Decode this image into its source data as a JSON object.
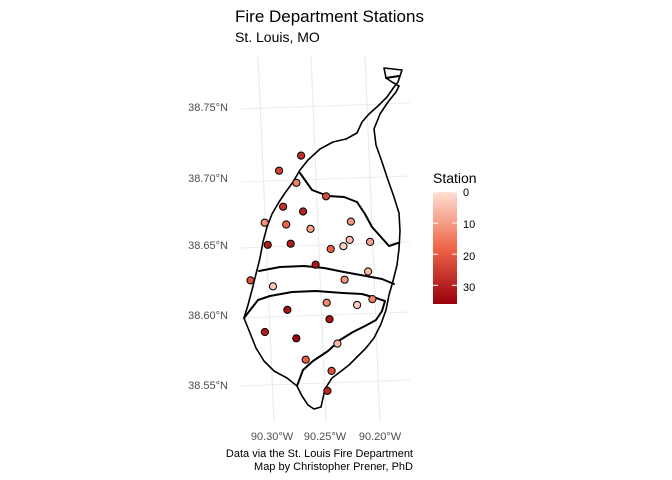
{
  "title": "Fire Department Stations",
  "subtitle": "St. Louis, MO",
  "caption": {
    "line1": "Data via the St. Louis Fire Department",
    "line2": "Map by Christopher Prener, PhD"
  },
  "legend": {
    "title": "Station",
    "labels": [
      "0",
      "10",
      "20",
      "30"
    ],
    "domain": [
      0,
      36
    ],
    "low_color": "#fee0d2",
    "mid_color": "#ef6548",
    "high_color": "#99000d"
  },
  "chart_data": {
    "type": "scatter",
    "x_ticks": [
      "90.30°W",
      "90.25°W",
      "90.20°W"
    ],
    "y_ticks": [
      "38.75°N",
      "38.70°N",
      "38.65°N",
      "38.60°N",
      "38.55°N"
    ],
    "x_tick_values": [
      -90.3,
      -90.25,
      -90.2
    ],
    "y_tick_values": [
      38.75,
      38.7,
      38.65,
      38.6,
      38.55
    ],
    "x_label": "",
    "y_label": "",
    "color_variable": "Station",
    "points": [
      {
        "lon": -90.24,
        "lat": 38.715,
        "station": 28
      },
      {
        "lon": -90.263,
        "lat": 38.706,
        "station": 24
      },
      {
        "lon": -90.25,
        "lat": 38.696,
        "station": 14
      },
      {
        "lon": -90.226,
        "lat": 38.684,
        "station": 23
      },
      {
        "lon": -90.267,
        "lat": 38.68,
        "station": 27
      },
      {
        "lon": -90.25,
        "lat": 38.675,
        "station": 30
      },
      {
        "lon": -90.287,
        "lat": 38.67,
        "station": 12
      },
      {
        "lon": -90.268,
        "lat": 38.667,
        "station": 18
      },
      {
        "lon": -90.209,
        "lat": 38.664,
        "station": 11
      },
      {
        "lon": -90.247,
        "lat": 38.662,
        "station": 9
      },
      {
        "lon": -90.289,
        "lat": 38.654,
        "station": 31
      },
      {
        "lon": -90.268,
        "lat": 38.653,
        "station": 31
      },
      {
        "lon": -90.214,
        "lat": 38.651,
        "station": 5
      },
      {
        "lon": -90.196,
        "lat": 38.648,
        "station": 9
      },
      {
        "lon": -90.221,
        "lat": 38.647,
        "station": 2
      },
      {
        "lon": -90.233,
        "lat": 38.646,
        "station": 19
      },
      {
        "lon": -90.25,
        "lat": 38.636,
        "station": 32
      },
      {
        "lon": -90.312,
        "lat": 38.63,
        "station": 22
      },
      {
        "lon": -90.204,
        "lat": 38.627,
        "station": 6
      },
      {
        "lon": -90.293,
        "lat": 38.624,
        "station": 4
      },
      {
        "lon": -90.227,
        "lat": 38.623,
        "station": 11
      },
      {
        "lon": -90.285,
        "lat": 38.606,
        "station": 33
      },
      {
        "lon": -90.248,
        "lat": 38.608,
        "station": 13
      },
      {
        "lon": -90.206,
        "lat": 38.607,
        "station": 14
      },
      {
        "lon": -90.221,
        "lat": 38.604,
        "station": 3
      },
      {
        "lon": -90.249,
        "lat": 38.596,
        "station": 32
      },
      {
        "lon": -90.31,
        "lat": 38.592,
        "station": 31
      },
      {
        "lon": -90.283,
        "lat": 38.585,
        "station": 36
      },
      {
        "lon": -90.247,
        "lat": 38.578,
        "station": 6
      },
      {
        "lon": -90.279,
        "lat": 38.569,
        "station": 19
      },
      {
        "lon": -90.258,
        "lat": 38.559,
        "station": 22
      },
      {
        "lon": -90.266,
        "lat": 38.545,
        "station": 29
      }
    ]
  }
}
